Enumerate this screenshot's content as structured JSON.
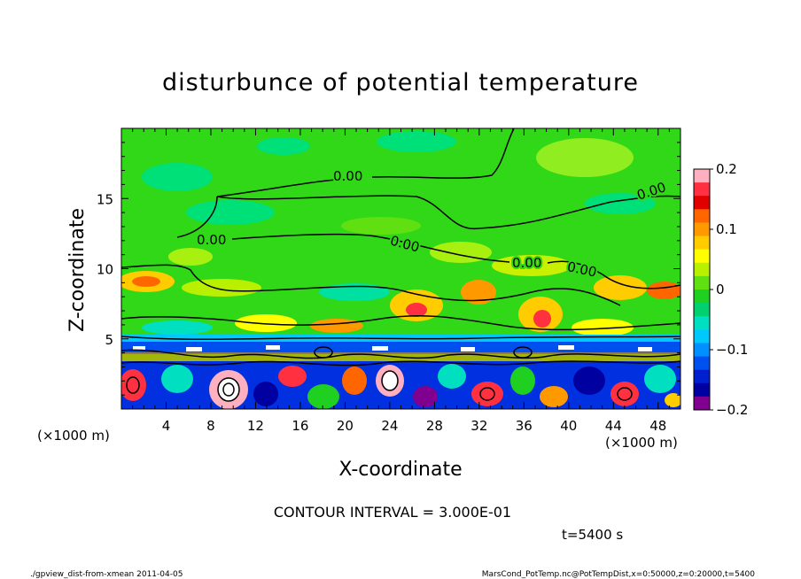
{
  "chart_data": {
    "type": "heatmap",
    "title": "disturbunce of potential temperature",
    "xlabel": "X-coordinate",
    "ylabel": "Z-coordinate",
    "x_unit": "(×1000 m)",
    "y_unit": "(×1000 m)",
    "xlim": [
      0,
      50
    ],
    "ylim": [
      0,
      20
    ],
    "x_ticks": [
      4,
      8,
      12,
      16,
      20,
      24,
      28,
      32,
      36,
      40,
      44,
      48
    ],
    "y_ticks": [
      5,
      10,
      15
    ],
    "colorbar": {
      "ticks": [
        0.2,
        0.1,
        0,
        -0.1,
        -0.2
      ],
      "tick_labels": [
        "0.2",
        "0.1",
        "0",
        "−0.1",
        "−0.2"
      ],
      "range": [
        -0.2,
        0.2
      ],
      "colors": [
        "#ffb0c0",
        "#ff3040",
        "#e00000",
        "#ff6600",
        "#ff9900",
        "#ffcc00",
        "#ffff00",
        "#b8f000",
        "#60e010",
        "#20d020",
        "#00d070",
        "#00e0c0",
        "#00c8ff",
        "#0090ff",
        "#0050f0",
        "#0020d0",
        "#0000a0",
        "#800090"
      ]
    },
    "contour_labels": [
      "0.00",
      "0.00",
      "0.00",
      "0.00",
      "0.00",
      "0.00"
    ],
    "contour_interval_text": "CONTOUR INTERVAL = 3.000E-01",
    "time_text": "t=5400 s",
    "footer_left": "./gpview_dist-from-xmean   2011-04-05",
    "footer_right": "MarsCond_PotTemp.nc@PotTempDist,x=0:50000,z=0:20000,t=5400"
  }
}
